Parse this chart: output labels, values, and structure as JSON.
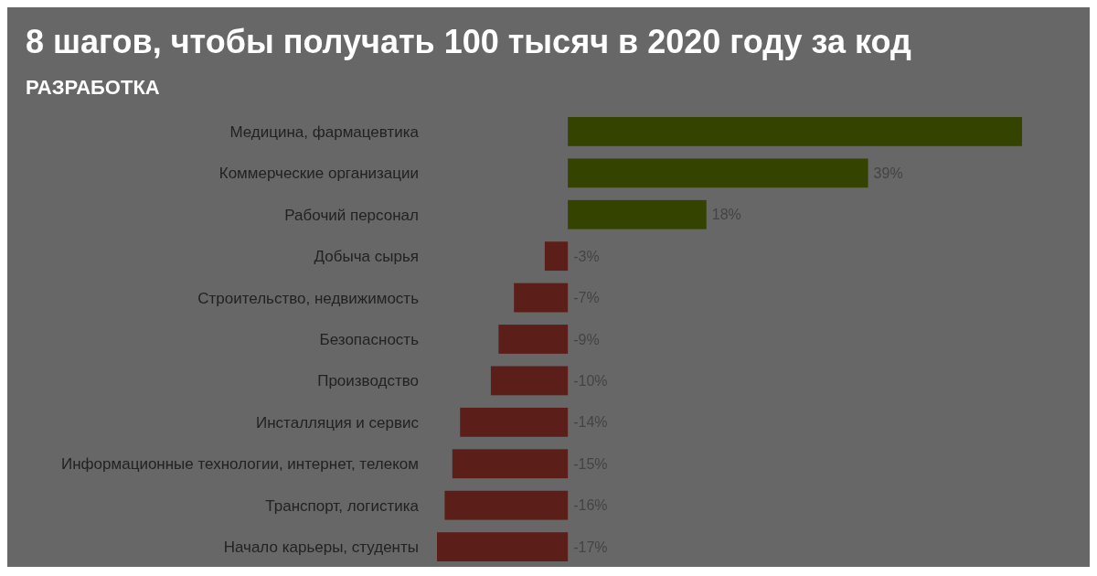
{
  "chart_data": {
    "type": "bar",
    "orientation": "horizontal",
    "title": "8 шагов, чтобы получать 100 тысяч в 2020 году за код",
    "subtitle": "РАЗРАБОТКА",
    "categories": [
      "Медицина, фармацевтика",
      "Коммерческие организации",
      "Рабочий персонал",
      "Добыча сырья",
      "Строительство, недвижимость",
      "Безопасность",
      "Производство",
      "Инсталляция и сервис",
      "Информационные технологии, интернет, телеком",
      "Транспорт, логистика",
      "Начало карьеры, студенты"
    ],
    "values": [
      59,
      39,
      18,
      -3,
      -7,
      -9,
      -10,
      -14,
      -15,
      -16,
      -17
    ],
    "colors": [
      "#344400",
      "#344400",
      "#344400",
      "#5b1e18",
      "#5b1e18",
      "#5b1e18",
      "#5b1e18",
      "#5b1e18",
      "#5b1e18",
      "#5b1e18",
      "#5b1e18"
    ],
    "value_labels": [
      null,
      "39%",
      "18%",
      "-3%",
      "-7%",
      "-9%",
      "-10%",
      "-14%",
      "-15%",
      "-16%",
      "-17%"
    ],
    "tick_labels": "y"
  }
}
